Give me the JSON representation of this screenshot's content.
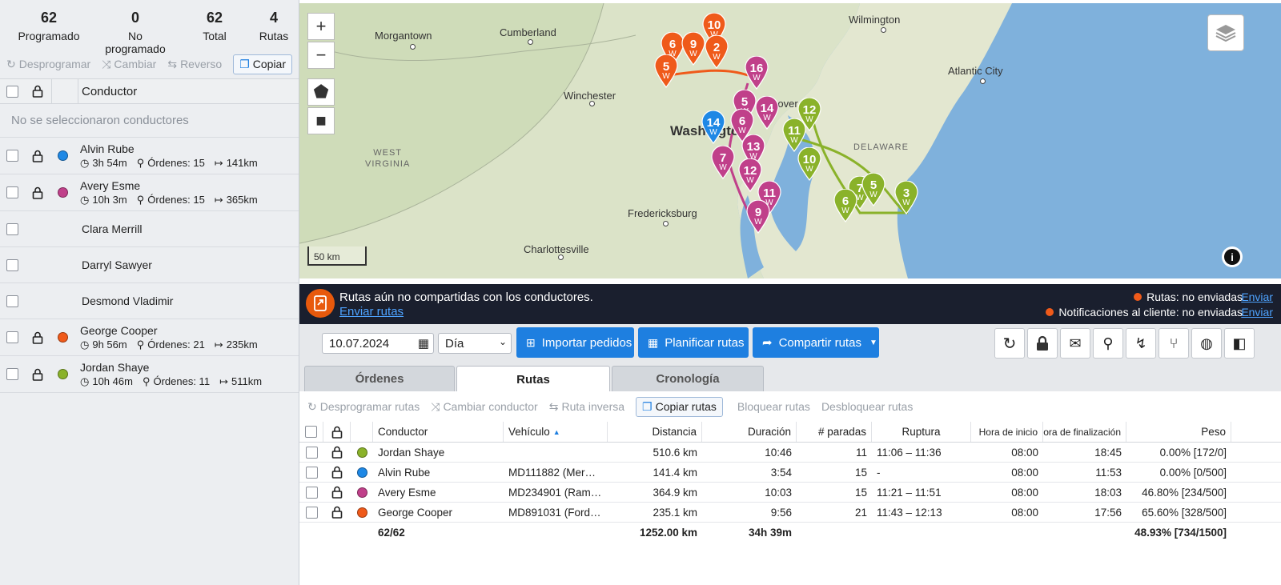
{
  "stats": [
    {
      "value": "62",
      "label": "Programado"
    },
    {
      "value": "0",
      "label": "No programado"
    },
    {
      "value": "62",
      "label": "Total"
    },
    {
      "value": "4",
      "label": "Rutas"
    }
  ],
  "left_tools": {
    "unschedule": "Desprogramar",
    "change": "Cambiar",
    "reverse": "Reverso",
    "copy": "Copiar"
  },
  "left_header": {
    "driver": "Conductor"
  },
  "no_selection": "No se seleccionaron conductores",
  "drivers": [
    {
      "name": "Alvin Rube",
      "time": "3h 54m",
      "orders": "Órdenes: 15",
      "dist": "141km",
      "color": "#1e88e5",
      "locked": true
    },
    {
      "name": "Avery Esme",
      "time": "10h 3m",
      "orders": "Órdenes: 15",
      "dist": "365km",
      "color": "#c0408a",
      "locked": true
    },
    {
      "name": "Clara Merrill"
    },
    {
      "name": "Darryl Sawyer"
    },
    {
      "name": "Desmond Vladimir"
    },
    {
      "name": "George Cooper",
      "time": "9h 56m",
      "orders": "Órdenes: 21",
      "dist": "235km",
      "color": "#ef5a1a",
      "locked": true
    },
    {
      "name": "Jordan Shaye",
      "time": "10h 46m",
      "orders": "Órdenes: 11",
      "dist": "511km",
      "color": "#8ab22a",
      "locked": true
    }
  ],
  "map": {
    "cities": {
      "morgantown": "Morgantown",
      "cumberland": "Cumberland",
      "wilmington": "Wilmington",
      "atlantic_city": "Atlantic City",
      "winchester": "Winchester",
      "washington": "Washington",
      "fredericksburg": "Fredericksburg",
      "charlottesville": "Charlottesville",
      "dover": "Dover"
    },
    "states": {
      "west_virginia_1": "WEST",
      "west_virginia_2": "VIRGINIA",
      "delaware": "DELAWARE"
    },
    "scale": "50 km",
    "zoom_in": "+",
    "zoom_out": "−",
    "pin_sub": "W",
    "pins": {
      "o10": "10",
      "o6": "6",
      "o9": "9",
      "o2": "2",
      "o5": "5",
      "m16": "16",
      "m5": "5",
      "m14": "14",
      "m6": "6",
      "b14": "14",
      "m13": "13",
      "m7": "7",
      "m12": "12",
      "m11": "11",
      "m9": "9",
      "g12": "12",
      "g11": "11",
      "g10": "10",
      "g7": "7",
      "g5": "5",
      "g6": "6",
      "g3": "3"
    }
  },
  "banner": {
    "message": "Rutas aún no compartidas con los conductores.",
    "send_link": "Enviar rutas",
    "status1": "Rutas: no enviadas",
    "status2": "Notificaciones al cliente: no enviadas",
    "send": "Enviar"
  },
  "toolbar": {
    "date": "10.07.2024",
    "period": "Día",
    "import": "Importar pedidos",
    "plan": "Planificar rutas",
    "share": "Compartir rutas"
  },
  "tabs": {
    "orders": "Órdenes",
    "routes": "Rutas",
    "timeline": "Cronología"
  },
  "route_tools": {
    "unschedule": "Desprogramar rutas",
    "change_driver": "Cambiar conductor",
    "reverse": "Ruta inversa",
    "copy": "Copiar rutas",
    "lock": "Bloquear rutas",
    "unlock": "Desbloquear rutas"
  },
  "table": {
    "headers": {
      "driver": "Conductor",
      "vehicle": "Vehículo",
      "distance": "Distancia",
      "duration": "Duración",
      "stops": "# paradas",
      "break": "Ruptura",
      "start": "Hora de inicio",
      "end": "Hora de finalización",
      "weight": "Peso"
    },
    "rows": [
      {
        "driver": "Jordan Shaye",
        "vehicle": "",
        "distance": "510.6 km",
        "duration": "10:46",
        "stops": "11",
        "break": "11:06 – 11:36",
        "start": "08:00",
        "end": "18:45",
        "weight": "0.00% [172/0]",
        "color": "#8ab22a"
      },
      {
        "driver": "Alvin Rube",
        "vehicle": "MD111882 (Mer…",
        "distance": "141.4 km",
        "duration": "3:54",
        "stops": "15",
        "break": "-",
        "start": "08:00",
        "end": "11:53",
        "weight": "0.00% [0/500]",
        "color": "#1e88e5"
      },
      {
        "driver": "Avery Esme",
        "vehicle": "MD234901 (Ram…",
        "distance": "364.9 km",
        "duration": "10:03",
        "stops": "15",
        "break": "11:21 – 11:51",
        "start": "08:00",
        "end": "18:03",
        "weight": "46.80% [234/500]",
        "color": "#c0408a"
      },
      {
        "driver": "George Cooper",
        "vehicle": "MD891031 (Ford…",
        "distance": "235.1 km",
        "duration": "9:56",
        "stops": "21",
        "break": "11:43 – 12:13",
        "start": "08:00",
        "end": "17:56",
        "weight": "65.60% [328/500]",
        "color": "#ef5a1a"
      }
    ],
    "totals": {
      "count": "62/62",
      "distance": "1252.00 km",
      "duration": "34h 39m",
      "weight": "48.93% [734/1500]"
    }
  }
}
